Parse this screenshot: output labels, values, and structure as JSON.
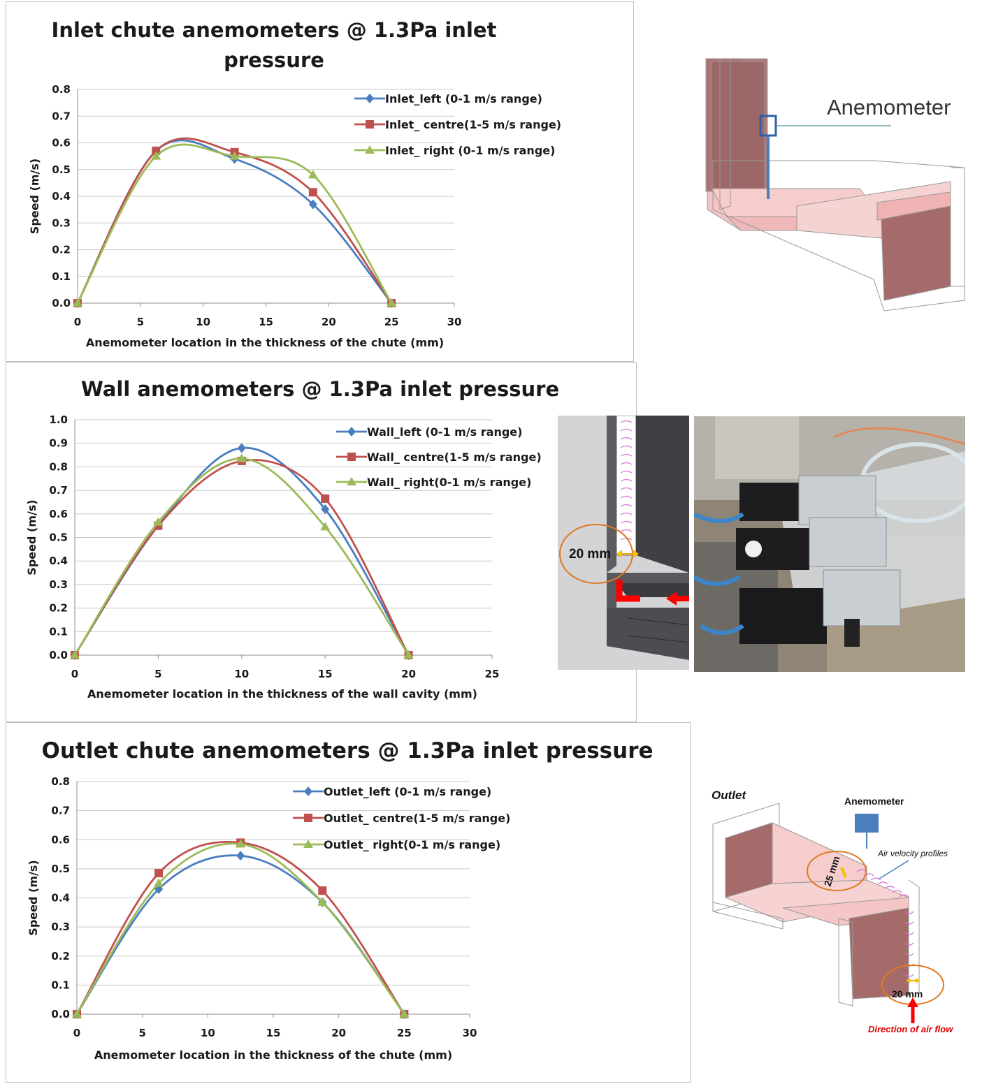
{
  "chart_data": [
    {
      "type": "line",
      "title": "Inlet chute anemometers @ 1.3Pa inlet pressure",
      "title_lines": [
        "Inlet chute anemometers @ 1.3Pa inlet",
        "pressure"
      ],
      "xlabel": "Anemometer location in the thickness of the chute (mm)",
      "ylabel": "Speed (m/s)",
      "xlim": [
        0,
        30
      ],
      "ylim": [
        0,
        0.8
      ],
      "xticks": [
        0,
        5,
        10,
        15,
        20,
        25,
        30
      ],
      "yticks": [
        "0.0",
        "0.1",
        "0.2",
        "0.3",
        "0.4",
        "0.5",
        "0.6",
        "0.7",
        "0.8"
      ],
      "grid": true,
      "legend_position": "top-right",
      "x": [
        0,
        6.25,
        12.5,
        18.75,
        25
      ],
      "series": [
        {
          "name": "Inlet_left (0-1 m/s range)",
          "color": "#4a7ebf",
          "marker": "diamond",
          "values": [
            0,
            0.57,
            0.54,
            0.37,
            0
          ]
        },
        {
          "name": "Inlet_ centre(1-5 m/s range)",
          "color": "#c0504d",
          "marker": "square",
          "values": [
            0,
            0.57,
            0.565,
            0.415,
            0
          ]
        },
        {
          "name": "Inlet_ right (0-1 m/s range)",
          "color": "#9bbb59",
          "marker": "triangle",
          "values": [
            0,
            0.55,
            0.55,
            0.48,
            0
          ]
        }
      ]
    },
    {
      "type": "line",
      "title": "Wall anemometers @ 1.3Pa inlet pressure",
      "title_lines": [
        "Wall anemometers @ 1.3Pa inlet pressure"
      ],
      "xlabel": "Anemometer location in the thickness of the wall cavity (mm)",
      "ylabel": "Speed (m/s)",
      "xlim": [
        0,
        25
      ],
      "ylim": [
        0,
        1.0
      ],
      "xticks": [
        0,
        5,
        10,
        15,
        20,
        25
      ],
      "yticks": [
        "0.0",
        "0.1",
        "0.2",
        "0.3",
        "0.4",
        "0.5",
        "0.6",
        "0.7",
        "0.8",
        "0.9",
        "1.0"
      ],
      "grid": true,
      "legend_position": "top-right",
      "x": [
        0,
        5,
        10,
        15,
        20
      ],
      "series": [
        {
          "name": "Wall_left (0-1 m/s range)",
          "color": "#4a7ebf",
          "marker": "diamond",
          "values": [
            0,
            0.55,
            0.88,
            0.62,
            0
          ]
        },
        {
          "name": "Wall_ centre(1-5 m/s range)",
          "color": "#c0504d",
          "marker": "square",
          "values": [
            0,
            0.55,
            0.825,
            0.665,
            0
          ]
        },
        {
          "name": "Wall_ right(0-1 m/s range)",
          "color": "#9bbb59",
          "marker": "triangle",
          "values": [
            0,
            0.565,
            0.835,
            0.545,
            0
          ]
        }
      ]
    },
    {
      "type": "line",
      "title": "Outlet chute anemometers @ 1.3Pa inlet pressure",
      "title_lines": [
        "Outlet chute anemometers @ 1.3Pa inlet pressure"
      ],
      "xlabel": "Anemometer location in the thickness of the chute (mm)",
      "ylabel": "Speed (m/s)",
      "xlim": [
        0,
        30
      ],
      "ylim": [
        0,
        0.8
      ],
      "xticks": [
        0,
        5,
        10,
        15,
        20,
        25,
        30
      ],
      "yticks": [
        "0.0",
        "0.1",
        "0.2",
        "0.3",
        "0.4",
        "0.5",
        "0.6",
        "0.7",
        "0.8"
      ],
      "grid": true,
      "legend_position": "top-right",
      "x": [
        0,
        6.25,
        12.5,
        18.75,
        25
      ],
      "series": [
        {
          "name": "Outlet_left (0-1 m/s range)",
          "color": "#4a7ebf",
          "marker": "diamond",
          "values": [
            0,
            0.43,
            0.545,
            0.385,
            0
          ]
        },
        {
          "name": "Outlet_ centre(1-5 m/s range)",
          "color": "#c0504d",
          "marker": "square",
          "values": [
            0,
            0.485,
            0.59,
            0.425,
            0
          ]
        },
        {
          "name": "Outlet_ right(0-1 m/s range)",
          "color": "#9bbb59",
          "marker": "triangle",
          "values": [
            0,
            0.45,
            0.585,
            0.385,
            0
          ]
        }
      ]
    }
  ],
  "illustrations": {
    "inlet": {
      "label": "Anemometer"
    },
    "wall": {
      "dimension": "20 mm"
    },
    "outlet": {
      "title": "Outlet",
      "anemometer": "Anemometer",
      "profiles": "Air velocity profiles",
      "dim_25": "25 mm",
      "dim_20": "20 mm",
      "airflow": "Direction of air flow"
    }
  }
}
